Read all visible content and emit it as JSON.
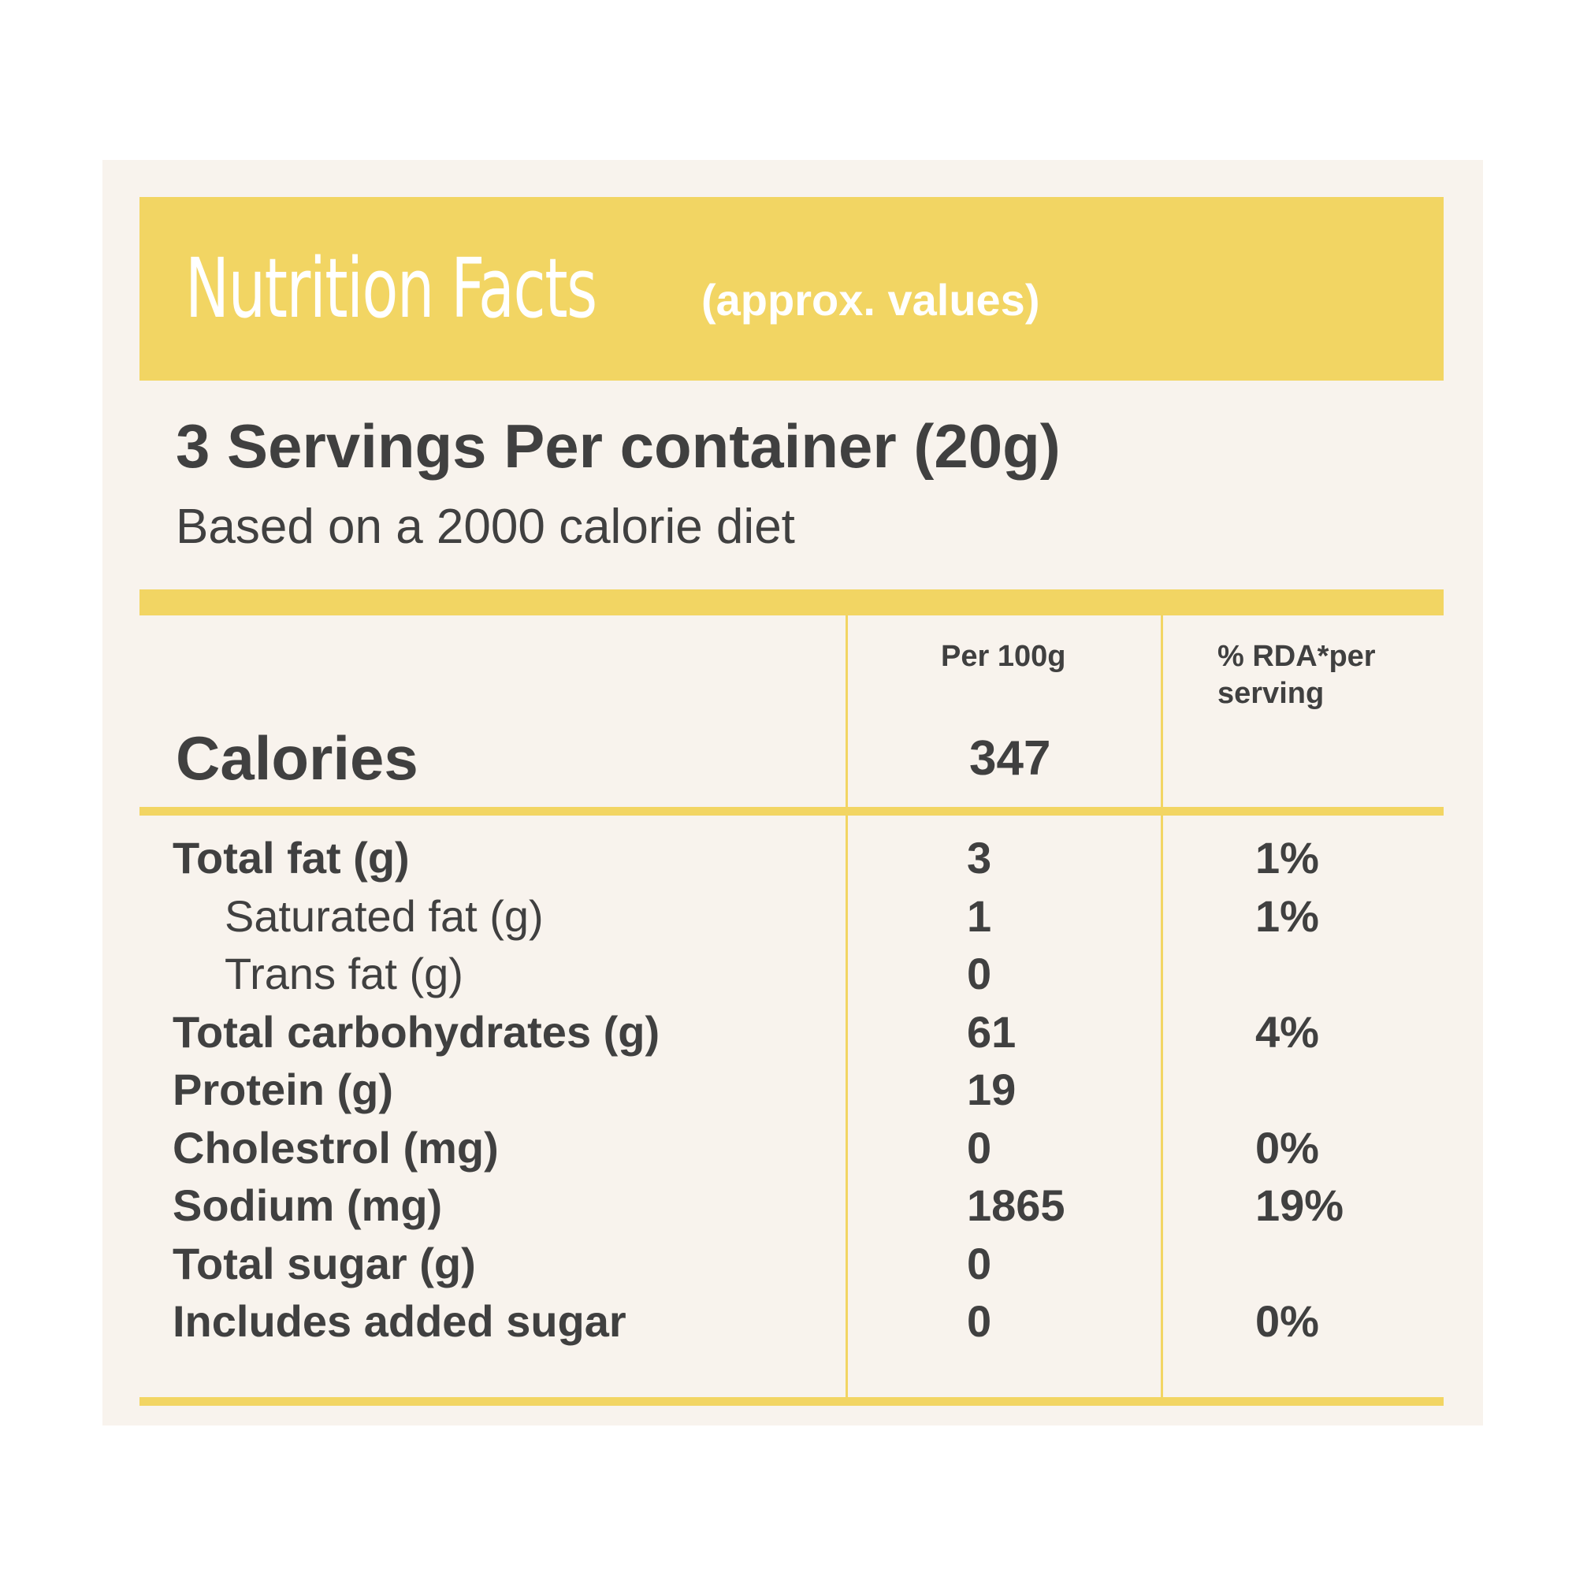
{
  "header": {
    "title": "Nutrition Facts",
    "subtitle": "(approx. values)"
  },
  "servings": {
    "text": "3 Servings Per container (20g)",
    "diet_note": "Based on a 2000 calorie diet"
  },
  "columns": {
    "per_100g": "Per 100g",
    "rda": "% RDA*per serving"
  },
  "calories": {
    "label": "Calories",
    "value": "347"
  },
  "nutrients": [
    {
      "name": "Total fat (g)",
      "per_100g": "3",
      "rda": "1%"
    },
    {
      "name": "Saturated fat (g)",
      "per_100g": "1",
      "rda": "1%"
    },
    {
      "name": "Trans fat (g)",
      "per_100g": "0",
      "rda": ""
    },
    {
      "name": "Total carbohydrates (g)",
      "per_100g": "61",
      "rda": "4%"
    },
    {
      "name": "Protein (g)",
      "per_100g": "19",
      "rda": ""
    },
    {
      "name": "Cholestrol (mg)",
      "per_100g": "0",
      "rda": "0%"
    },
    {
      "name": "Sodium (mg)",
      "per_100g": "1865",
      "rda": "19%"
    },
    {
      "name": "Total sugar (g)",
      "per_100g": "0",
      "rda": ""
    },
    {
      "name": "Includes added sugar",
      "per_100g": "0",
      "rda": "0%"
    }
  ],
  "colors": {
    "accent_yellow": "#f2d563",
    "card_background": "#f8f3ed",
    "text": "#404040"
  }
}
